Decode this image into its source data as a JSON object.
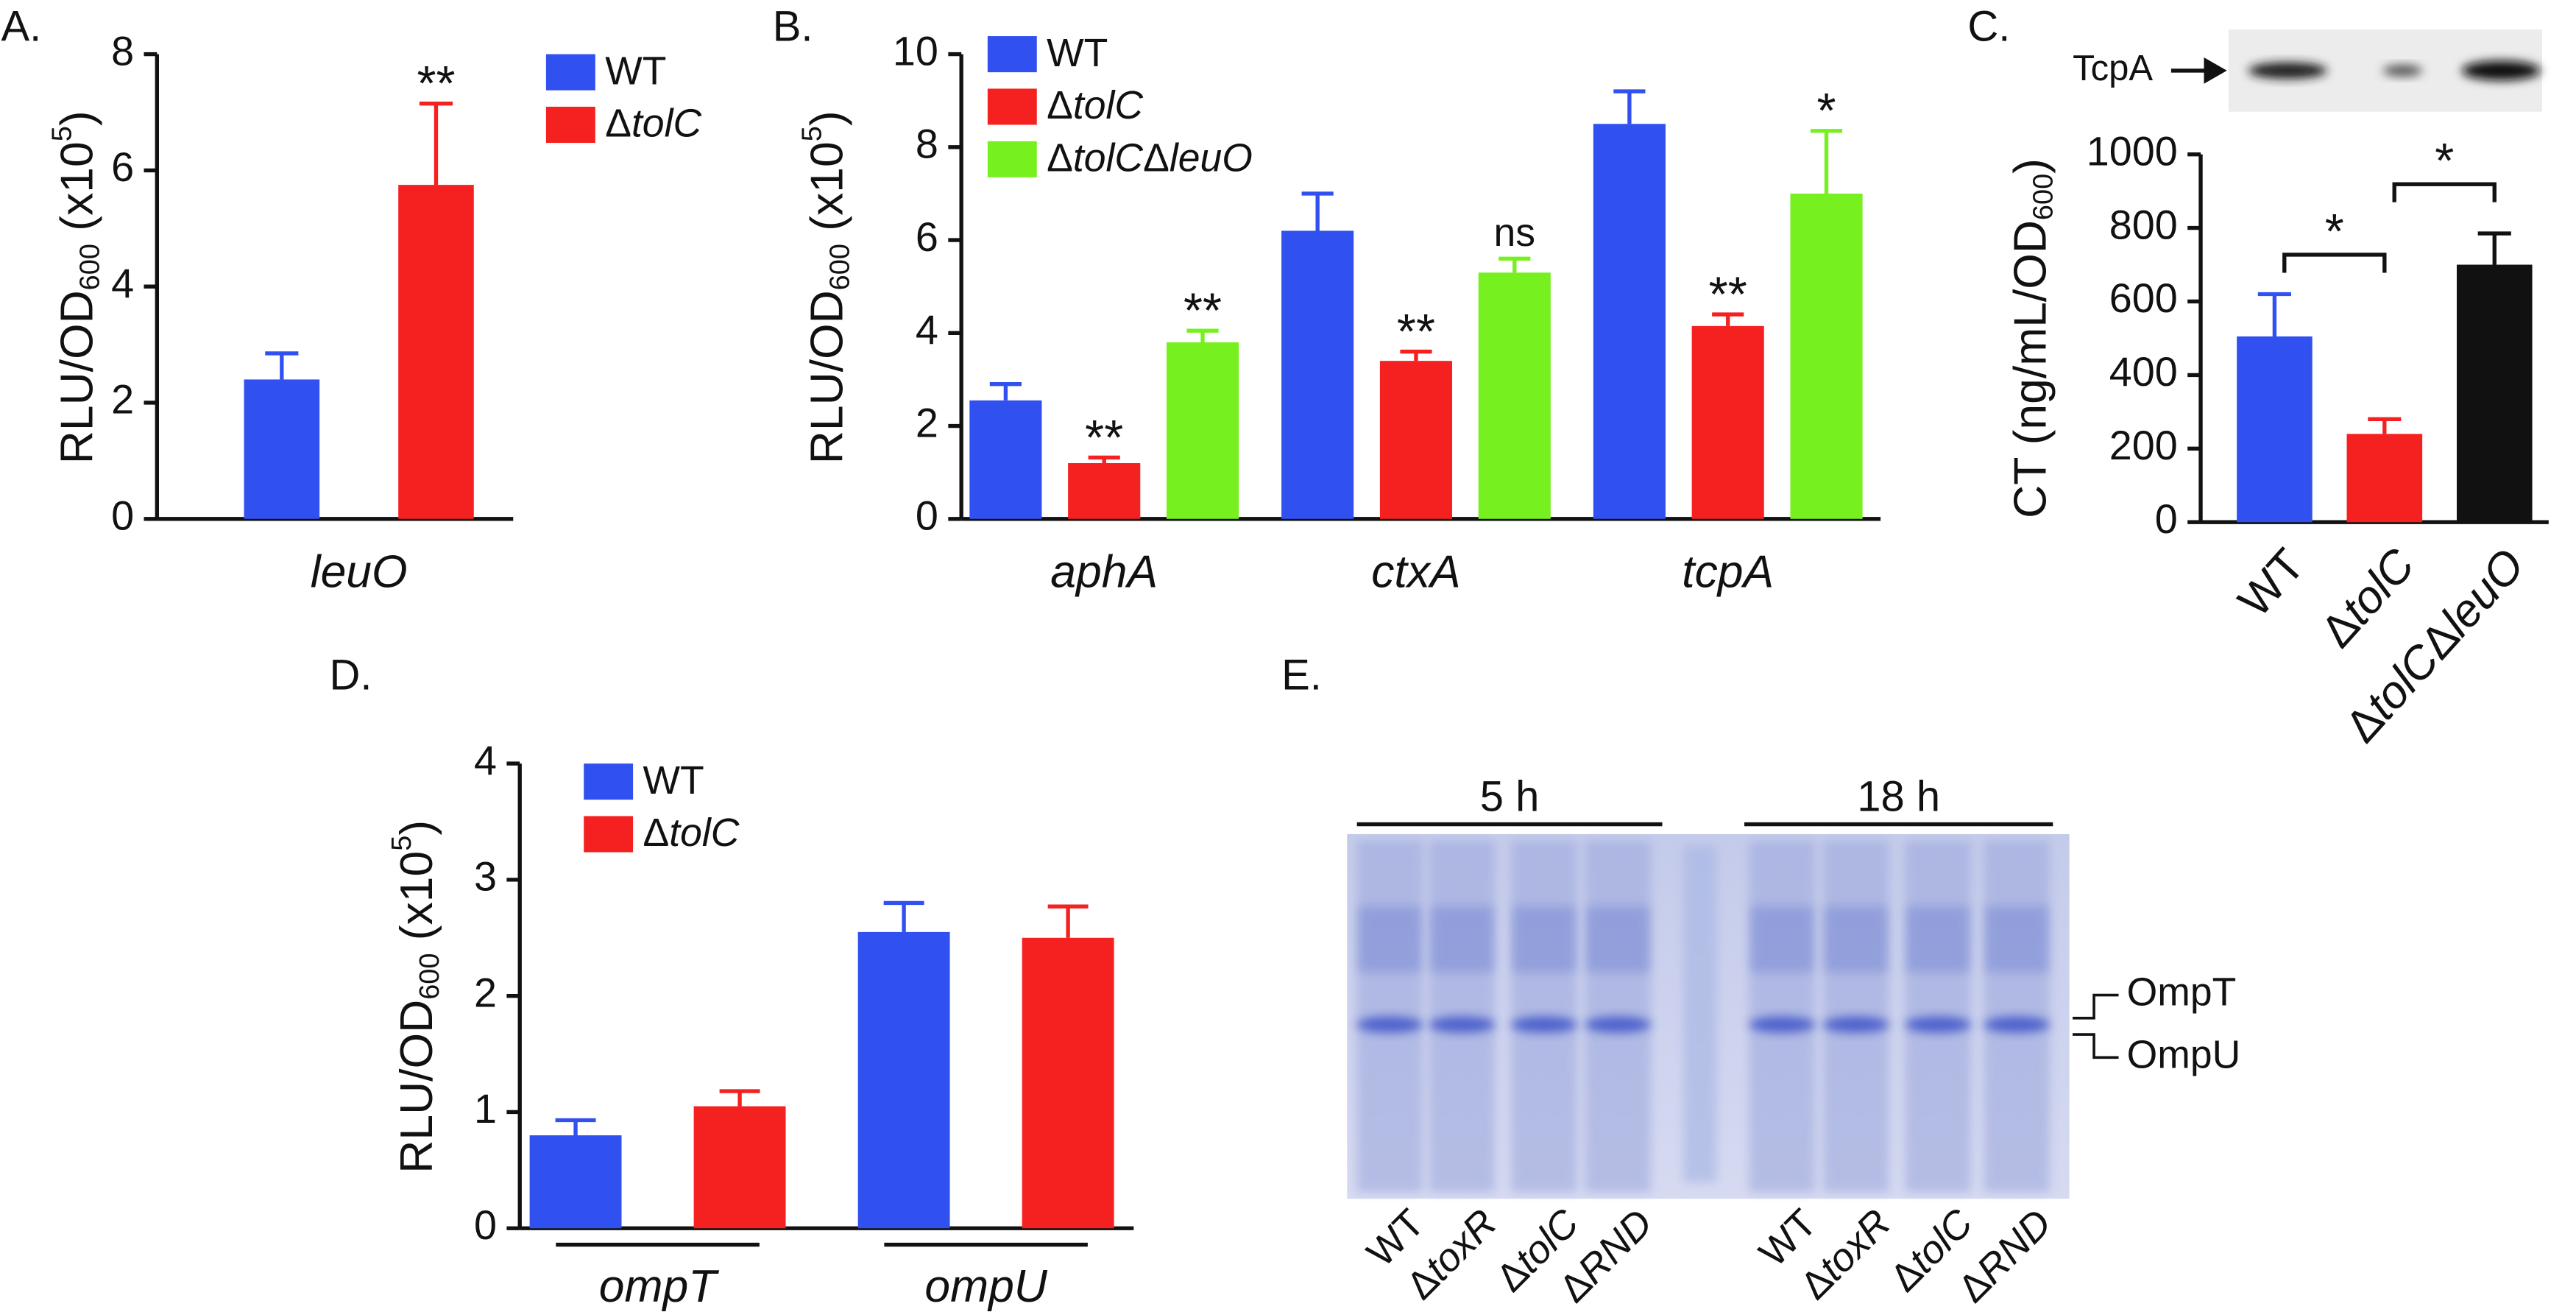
{
  "chart_data": [
    {
      "type": "bar",
      "panel": "A.",
      "y_label": [
        "RLU/OD",
        "600",
        " (x10",
        "5",
        ")"
      ],
      "categories": [
        "leuO"
      ],
      "series": [
        {
          "name": "WT",
          "color": "#3050f0",
          "values": [
            2.4
          ],
          "errors": [
            0.45
          ],
          "annotations": [
            null
          ]
        },
        {
          "name": "ΔtolC",
          "color": "#f52020",
          "values": [
            5.75
          ],
          "errors": [
            1.4
          ],
          "annotations": [
            "**"
          ]
        }
      ],
      "ylim": [
        0,
        8
      ],
      "yticks": [
        0,
        2,
        4,
        6,
        8
      ]
    },
    {
      "type": "bar",
      "panel": "B.",
      "y_label": [
        "RLU/OD",
        "600",
        " (x10",
        "5",
        ")"
      ],
      "categories": [
        "aphA",
        "ctxA",
        "tcpA"
      ],
      "series": [
        {
          "name": "WT",
          "color": "#3050f0",
          "values": [
            2.55,
            6.2,
            8.5
          ],
          "errors": [
            0.35,
            0.8,
            0.7
          ],
          "annotations": [
            null,
            null,
            null
          ]
        },
        {
          "name": "ΔtolC",
          "color": "#f52020",
          "values": [
            1.2,
            3.4,
            4.15
          ],
          "errors": [
            0.12,
            0.2,
            0.25
          ],
          "annotations": [
            "**",
            "**",
            "**"
          ]
        },
        {
          "name": "ΔtolCΔleuO",
          "color": "#77f020",
          "values": [
            3.8,
            5.3,
            7.0
          ],
          "errors": [
            0.25,
            0.3,
            1.35
          ],
          "annotations": [
            "**",
            "ns",
            "*"
          ]
        }
      ],
      "ylim": [
        0,
        10
      ],
      "yticks": [
        0,
        2,
        4,
        6,
        8,
        10
      ]
    },
    {
      "type": "bar",
      "panel": "C.",
      "y_label": [
        "CT (ng/mL/OD",
        "600",
        ")"
      ],
      "categories": [
        "WT",
        "ΔtolC",
        "ΔtolCΔleuO"
      ],
      "values": [
        505,
        240,
        700
      ],
      "errors": [
        115,
        40,
        85
      ],
      "colors": [
        "#3050f0",
        "#f52020",
        "#111111"
      ],
      "bracket_labels": [
        "*",
        "*"
      ],
      "blot_label": "TcpA",
      "ylim": [
        0,
        1000
      ],
      "yticks": [
        0,
        200,
        400,
        600,
        800,
        1000
      ]
    },
    {
      "type": "bar",
      "panel": "D.",
      "y_label": [
        "RLU/OD",
        "600",
        " (x10",
        "5",
        ")"
      ],
      "categories": [
        "ompT",
        "ompU"
      ],
      "series": [
        {
          "name": "WT",
          "color": "#3050f0",
          "values": [
            0.8,
            2.55
          ],
          "errors": [
            0.13,
            0.25
          ],
          "annotations": [
            null,
            null
          ]
        },
        {
          "name": "ΔtolC",
          "color": "#f52020",
          "values": [
            1.05,
            2.5
          ],
          "errors": [
            0.13,
            0.27
          ],
          "annotations": [
            null,
            null
          ]
        }
      ],
      "ylim": [
        0,
        4
      ],
      "yticks": [
        0,
        1,
        2,
        3,
        4
      ]
    }
  ],
  "gel": {
    "panel": "E.",
    "groups": [
      "5 h",
      "18 h"
    ],
    "lanes": [
      "WT",
      "ΔtoxR",
      "ΔtolC",
      "ΔRND",
      "WT",
      "ΔtoxR",
      "ΔtolC",
      "ΔRND"
    ],
    "bands": [
      "OmpT",
      "OmpU"
    ]
  }
}
